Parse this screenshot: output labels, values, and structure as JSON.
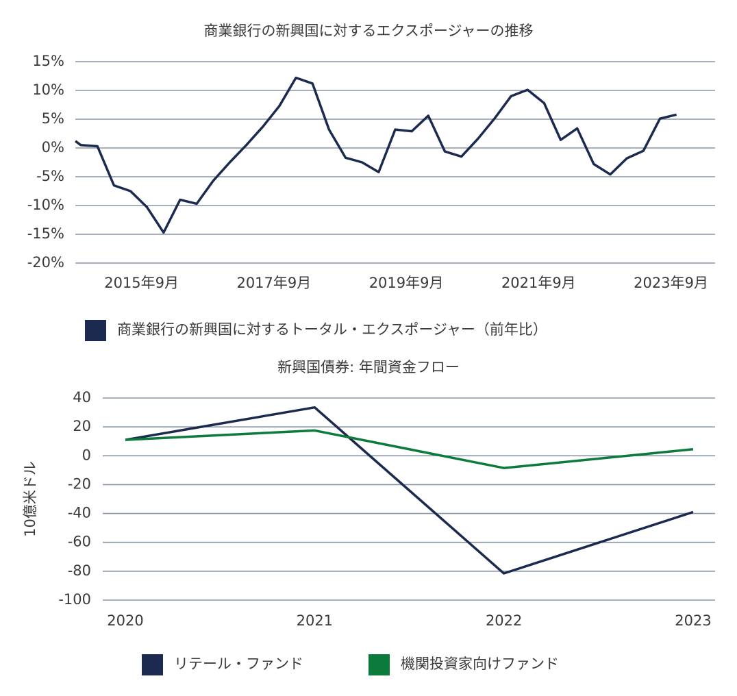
{
  "chart_data": [
    {
      "type": "line",
      "title": "商業銀行の新興国に対するエクスポージャーの推移",
      "x": [
        "2014-09",
        "2014-10",
        "2015-01",
        "2015-04",
        "2015-07",
        "2015-10",
        "2016-01",
        "2016-04",
        "2016-07",
        "2016-10",
        "2017-01",
        "2017-04",
        "2017-07",
        "2017-10",
        "2018-01",
        "2018-04",
        "2018-07",
        "2018-10",
        "2019-01",
        "2019-04",
        "2019-07",
        "2019-10",
        "2020-01",
        "2020-04",
        "2020-07",
        "2020-10",
        "2021-01",
        "2021-04",
        "2021-07",
        "2021-10",
        "2022-01",
        "2022-04",
        "2022-07",
        "2022-10",
        "2023-01",
        "2023-04",
        "2023-07",
        "2023-10"
      ],
      "series": [
        {
          "name": "商業銀行の新興国に対するトータル・エクスポージャー（前年比）",
          "color": "#1b2a4e",
          "values": [
            1.2,
            0.5,
            0.3,
            -6.5,
            -7.5,
            -10.3,
            -14.7,
            -9,
            -9.7,
            -5.7,
            -2.5,
            0.5,
            3.7,
            7.3,
            12.2,
            11.2,
            3.2,
            -1.7,
            -2.5,
            -4.2,
            3.2,
            2.9,
            5.6,
            -0.6,
            -1.5,
            1.6,
            5.1,
            9,
            10.1,
            7.8,
            1.4,
            3.4,
            -2.8,
            -4.6,
            -1.8,
            -0.5,
            5.1,
            5.8
          ]
        }
      ],
      "xlim": [
        "2014-09",
        "2024-05"
      ],
      "xticks": [
        {
          "value": "2015-09",
          "label": "2015年9月"
        },
        {
          "value": "2017-09",
          "label": "2017年9月"
        },
        {
          "value": "2019-09",
          "label": "2019年9月"
        },
        {
          "value": "2021-09",
          "label": "2021年9月"
        },
        {
          "value": "2023-09",
          "label": "2023年9月"
        }
      ],
      "ylim": [
        -20,
        15
      ],
      "yticks": [
        {
          "value": -20,
          "label": "-20%"
        },
        {
          "value": -15,
          "label": "-15%"
        },
        {
          "value": -10,
          "label": "-10%"
        },
        {
          "value": -5,
          "label": "-5%"
        },
        {
          "value": 0,
          "label": "0%"
        },
        {
          "value": 5,
          "label": "5%"
        },
        {
          "value": 10,
          "label": "10%"
        },
        {
          "value": 15,
          "label": "15%"
        }
      ],
      "grid": true,
      "legend": "bottom"
    },
    {
      "type": "line",
      "title": "新興国債券: 年間資金フロー",
      "ylabel": "10億米ドル",
      "categories": [
        "2020",
        "2021",
        "2022",
        "2023"
      ],
      "series": [
        {
          "name": "リテール・ファンド",
          "color": "#1b2a4e",
          "values": [
            11,
            33.5,
            -81.5,
            -39
          ]
        },
        {
          "name": "機関投資家向けファンド",
          "color": "#0b7a3b",
          "values": [
            11,
            17.5,
            -8.5,
            4.5
          ]
        }
      ],
      "ylim": [
        -100,
        40
      ],
      "yticks": [
        -100,
        -80,
        -60,
        -40,
        -20,
        0,
        20,
        40
      ],
      "grid": true,
      "legend": "bottom"
    }
  ]
}
